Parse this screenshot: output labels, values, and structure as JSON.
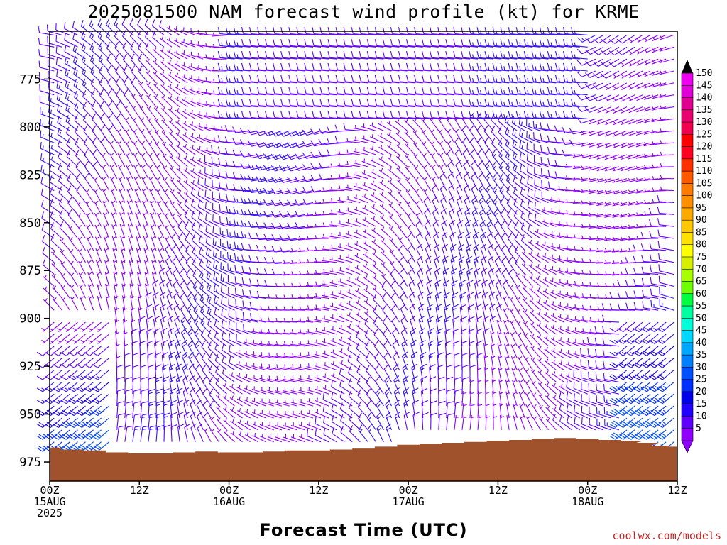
{
  "chart_data": {
    "type": "wind-barb-profile",
    "title": "2025081500 NAM forecast wind profile (kt) for KRME",
    "xlabel": "Forecast Time (UTC)",
    "ylabel": "",
    "credit": "coolwx.com/models",
    "x_range_hours": [
      0,
      84
    ],
    "y_range_hPa": [
      985,
      750
    ],
    "y_ticks": [
      {
        "label": "775",
        "value": 775
      },
      {
        "label": "800",
        "value": 800
      },
      {
        "label": "825",
        "value": 825
      },
      {
        "label": "850",
        "value": 850
      },
      {
        "label": "875",
        "value": 875
      },
      {
        "label": "900",
        "value": 900
      },
      {
        "label": "925",
        "value": 925
      },
      {
        "label": "950",
        "value": 950
      },
      {
        "label": "975",
        "value": 975
      }
    ],
    "x_ticks": [
      {
        "hour": 0,
        "lines": [
          "00Z",
          "15AUG",
          "2025"
        ]
      },
      {
        "hour": 12,
        "lines": [
          "12Z"
        ]
      },
      {
        "hour": 24,
        "lines": [
          "00Z",
          "16AUG"
        ]
      },
      {
        "hour": 36,
        "lines": [
          "12Z"
        ]
      },
      {
        "hour": 48,
        "lines": [
          "00Z",
          "17AUG"
        ]
      },
      {
        "hour": 60,
        "lines": [
          "12Z"
        ]
      },
      {
        "hour": 72,
        "lines": [
          "00Z",
          "18AUG"
        ]
      },
      {
        "hour": 84,
        "lines": [
          "12Z"
        ]
      }
    ],
    "colorbar": {
      "labels": [
        "150",
        "145",
        "140",
        "135",
        "130",
        "125",
        "120",
        "115",
        "110",
        "105",
        "100",
        "95",
        "90",
        "85",
        "80",
        "75",
        "70",
        "65",
        "60",
        "55",
        "50",
        "45",
        "40",
        "35",
        "30",
        "25",
        "20",
        "15",
        "10",
        "5"
      ],
      "colors": [
        "#f000f0",
        "#e000d8",
        "#e00090",
        "#e8006e",
        "#f0004e",
        "#ff0000",
        "#ff0020",
        "#ff3000",
        "#ff5a00",
        "#ff7a00",
        "#ff9000",
        "#ffaa00",
        "#ffc800",
        "#ffe000",
        "#ffff00",
        "#d8f000",
        "#a8ff00",
        "#70ff00",
        "#00ff40",
        "#00ffa0",
        "#00ffd8",
        "#00d8ff",
        "#00a8ff",
        "#0080ff",
        "#0050ff",
        "#0030ff",
        "#0000e8",
        "#2000ff",
        "#6000ff",
        "#9000ff"
      ],
      "top_arrow_color": "#000000",
      "bottom_arrow_color": "#9000ff"
    },
    "terrain_color": "#a0522d",
    "terrain_surface_hPa": [
      {
        "hour": 0,
        "p": 967.5
      },
      {
        "hour": 3,
        "p": 968.5
      },
      {
        "hour": 6,
        "p": 969
      },
      {
        "hour": 9,
        "p": 970
      },
      {
        "hour": 12,
        "p": 970.5
      },
      {
        "hour": 15,
        "p": 970.5
      },
      {
        "hour": 18,
        "p": 970
      },
      {
        "hour": 21,
        "p": 969.5
      },
      {
        "hour": 24,
        "p": 970
      },
      {
        "hour": 27,
        "p": 970
      },
      {
        "hour": 30,
        "p": 969.5
      },
      {
        "hour": 33,
        "p": 969
      },
      {
        "hour": 36,
        "p": 969
      },
      {
        "hour": 39,
        "p": 968.5
      },
      {
        "hour": 42,
        "p": 968
      },
      {
        "hour": 45,
        "p": 967
      },
      {
        "hour": 48,
        "p": 966
      },
      {
        "hour": 51,
        "p": 965.5
      },
      {
        "hour": 54,
        "p": 965
      },
      {
        "hour": 57,
        "p": 964.5
      },
      {
        "hour": 60,
        "p": 964
      },
      {
        "hour": 63,
        "p": 963.5
      },
      {
        "hour": 66,
        "p": 963
      },
      {
        "hour": 69,
        "p": 962.5
      },
      {
        "hour": 72,
        "p": 963
      },
      {
        "hour": 75,
        "p": 963.5
      },
      {
        "hour": 78,
        "p": 964
      },
      {
        "hour": 80,
        "p": 965
      },
      {
        "hour": 82,
        "p": 966.5
      },
      {
        "hour": 84,
        "p": 967
      }
    ],
    "wind_summary": "Wind barbs every hour from 0 to 84 h at 25 hPa-spaced levels; speeds mostly 5-15 kt (purple), 20-30 kt (blue) near 925-950 hPa around hours 0-6 and 78-84."
  }
}
